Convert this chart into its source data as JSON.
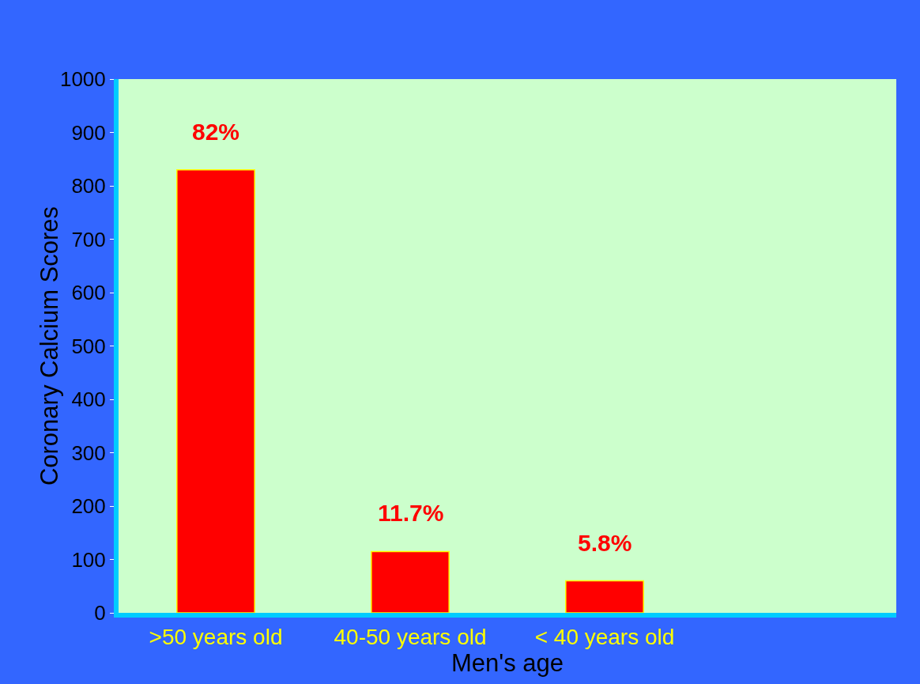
{
  "chart_data": {
    "type": "bar",
    "ylabel": "Coronary Calcium Scores",
    "xlabel": "Men's age",
    "categories": [
      ">50 years old",
      "40-50 years old",
      "< 40 years old",
      null
    ],
    "values": [
      830,
      115,
      60,
      null
    ],
    "color": "#ff0000",
    "ylim": [
      0,
      1000
    ],
    "yticks": [
      0,
      100,
      200,
      300,
      400,
      500,
      600,
      700,
      800,
      900,
      1000
    ],
    "annotations": [
      {
        "text": "82%",
        "x": ">50 years old",
        "y": 830
      },
      {
        "text": "11.7%",
        "x": "40-50 years old",
        "y": 115
      },
      {
        "text": "5.8%",
        "x": "< 40 years old",
        "y": 60
      }
    ]
  }
}
